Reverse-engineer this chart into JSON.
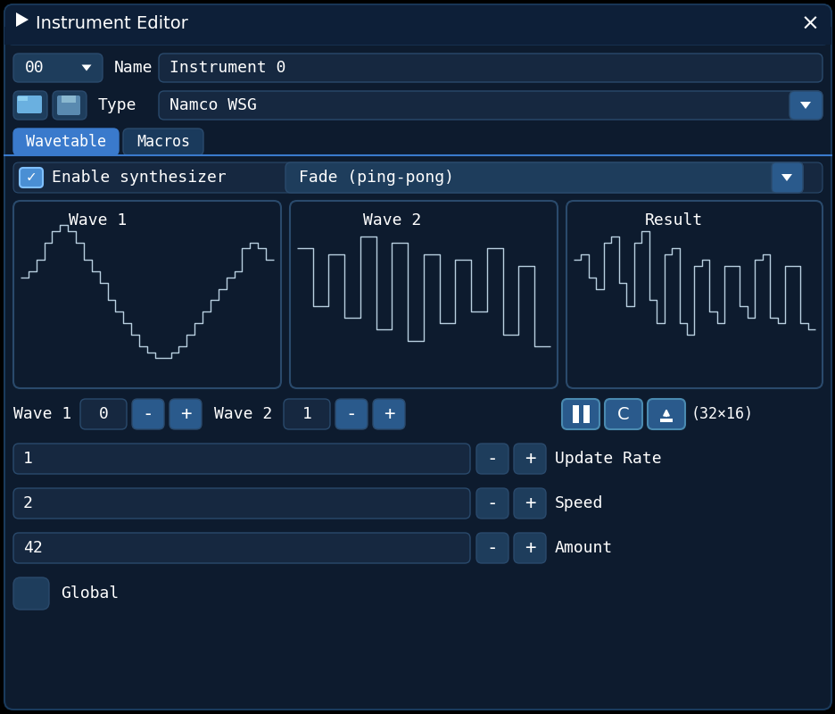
{
  "bg_color": "#000000",
  "panel_color": "#0d1b2e",
  "dark_bg": "#050d18",
  "btn_color": "#162840",
  "btn_mid": "#1e3d5c",
  "btn_light": "#2a5a8c",
  "active_tab": "#3a7acc",
  "inactive_tab": "#1a3a5c",
  "text_color": "#ffffff",
  "border_color": "#2a4a6c",
  "title_bar": "#0d1f38",
  "wave_bg": "#0d1b2e",
  "wave_line": "#b8cfe0",
  "check_color": "#4a8fd4",
  "title": "Instrument Editor",
  "instrument_num": "00",
  "name_label": "Name",
  "name_value": "Instrument 0",
  "type_label": "Type",
  "type_value": "Namco WSG",
  "tab1": "Wavetable",
  "tab2": "Macros",
  "enable_text": "Enable synthesizer",
  "fade_value": "Fade (ping-pong)",
  "wave1_label": "Wave 1",
  "wave1_val": "0",
  "wave2_label": "Wave 2",
  "wave2_val": "1",
  "size_label": "(32×16)",
  "row1_val": "1",
  "row1_label": "Update Rate",
  "row2_val": "2",
  "row2_label": "Speed",
  "row3_val": "42",
  "row3_label": "Amount",
  "global_label": "Global",
  "wave1_data": [
    3,
    4,
    6,
    9,
    11,
    12,
    11,
    9,
    6,
    4,
    2,
    -1,
    -3,
    -5,
    -7,
    -9,
    -10,
    -11,
    -11,
    -10,
    -9,
    -7,
    -5,
    -3,
    -1,
    1,
    3,
    4,
    8,
    9,
    8,
    6
  ],
  "wave2_data": [
    8,
    8,
    -2,
    -2,
    7,
    7,
    -4,
    -4,
    10,
    10,
    -6,
    -6,
    9,
    9,
    -8,
    -8,
    7,
    7,
    -5,
    -5,
    6,
    6,
    -3,
    -3,
    8,
    8,
    -7,
    -7,
    5,
    5,
    -9,
    -9
  ],
  "result_data": [
    6,
    7,
    3,
    1,
    9,
    10,
    2,
    -2,
    9,
    11,
    -1,
    -5,
    7,
    8,
    -5,
    -7,
    5,
    6,
    -3,
    -5,
    5,
    5,
    -2,
    -4,
    6,
    7,
    -4,
    -5,
    5,
    5,
    -5,
    -6
  ]
}
